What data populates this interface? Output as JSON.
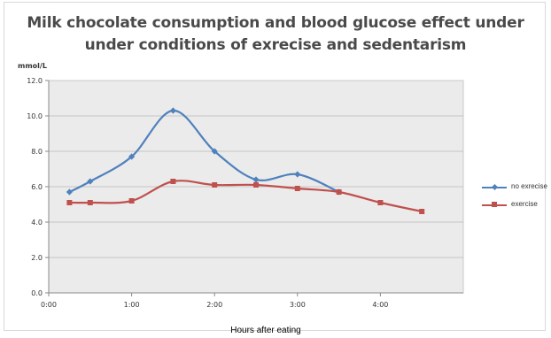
{
  "chart_data": {
    "type": "line",
    "title_line1": "Milk chocolate consumption and blood glucose effect under",
    "title_line2": "under conditions of exrecise and sedentarism",
    "ylabel": "mmol/L",
    "xlabel": "Hours after eating",
    "ylim": [
      0,
      12
    ],
    "yticks": [
      0,
      2,
      4,
      6,
      8,
      10,
      12
    ],
    "ytick_labels": [
      "0.0",
      "2.0",
      "4.0",
      "6.0",
      "8.0",
      "10.0",
      "12.0"
    ],
    "xlim": [
      0,
      5
    ],
    "xticks": [
      0,
      1,
      2,
      3,
      4
    ],
    "xtick_labels": [
      "0:00",
      "1:00",
      "2:00",
      "3:00",
      "4:00"
    ],
    "grid": true,
    "legend_position": "right",
    "series": [
      {
        "name": "no exrecise",
        "color": "#4f81bd",
        "marker": "diamond",
        "x": [
          0.25,
          0.5,
          1.0,
          1.5,
          2.0,
          2.5,
          3.0,
          3.5
        ],
        "values": [
          5.7,
          6.3,
          7.7,
          10.3,
          8.0,
          6.4,
          6.7,
          5.7
        ]
      },
      {
        "name": "exercise",
        "color": "#c0504d",
        "marker": "square",
        "x": [
          0.25,
          0.5,
          1.0,
          1.5,
          2.0,
          2.5,
          3.0,
          3.5,
          4.0,
          4.5
        ],
        "values": [
          5.1,
          5.1,
          5.2,
          6.3,
          6.1,
          6.1,
          5.9,
          5.7,
          5.1,
          4.6
        ]
      }
    ]
  }
}
